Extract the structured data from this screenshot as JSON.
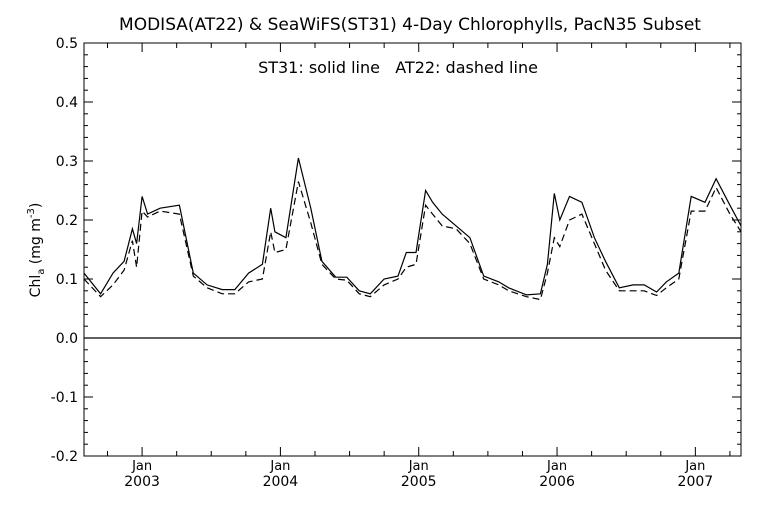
{
  "chart_data": {
    "type": "line",
    "title": "MODISA(AT22) & SeaWiFS(ST31) 4-Day Chlorophylls, PacN35 Subset",
    "annotation": "ST31: solid line   AT22: dashed line",
    "ylabel": "Chl",
    "ylabel_sub": "a",
    "ylabel_units_open": " (mg m",
    "ylabel_units_sup": "-3",
    "ylabel_units_close": ")",
    "ylim": [
      -0.2,
      0.5
    ],
    "xlim": [
      2002.58,
      2007.33
    ],
    "yticks": [
      -0.2,
      -0.1,
      0.0,
      0.1,
      0.2,
      0.3,
      0.4,
      0.5
    ],
    "ytick_labels": [
      "-0.2",
      "-0.1",
      "0.0",
      "0.1",
      "0.2",
      "0.3",
      "0.4",
      "0.5"
    ],
    "xticks": [
      {
        "x": 2003,
        "month": "Jan",
        "year": "2003"
      },
      {
        "x": 2004,
        "month": "Jan",
        "year": "2004"
      },
      {
        "x": 2005,
        "month": "Jan",
        "year": "2005"
      },
      {
        "x": 2006,
        "month": "Jan",
        "year": "2006"
      },
      {
        "x": 2007,
        "month": "Jan",
        "year": "2007"
      }
    ],
    "zero_line": 0.0,
    "series": [
      {
        "name": "ST31",
        "style": "solid",
        "x": [
          2002.58,
          2002.7,
          2002.79,
          2002.87,
          2002.93,
          2002.96,
          2003.0,
          2003.04,
          2003.13,
          2003.27,
          2003.37,
          2003.47,
          2003.58,
          2003.67,
          2003.77,
          2003.87,
          2003.93,
          2003.96,
          2004.04,
          2004.13,
          2004.22,
          2004.3,
          2004.4,
          2004.48,
          2004.57,
          2004.65,
          2004.75,
          2004.85,
          2004.91,
          2004.98,
          2005.05,
          2005.1,
          2005.17,
          2005.27,
          2005.37,
          2005.47,
          2005.58,
          2005.65,
          2005.78,
          2005.88,
          2005.93,
          2005.98,
          2006.02,
          2006.09,
          2006.18,
          2006.27,
          2006.35,
          2006.45,
          2006.55,
          2006.63,
          2006.72,
          2006.79,
          2006.88,
          2006.97,
          2007.07,
          2007.15,
          2007.25,
          2007.33
        ],
        "y": [
          0.11,
          0.075,
          0.11,
          0.13,
          0.185,
          0.16,
          0.24,
          0.21,
          0.22,
          0.225,
          0.11,
          0.09,
          0.082,
          0.082,
          0.11,
          0.125,
          0.22,
          0.18,
          0.17,
          0.305,
          0.22,
          0.13,
          0.103,
          0.103,
          0.08,
          0.075,
          0.1,
          0.105,
          0.145,
          0.145,
          0.25,
          0.23,
          0.21,
          0.19,
          0.17,
          0.105,
          0.095,
          0.085,
          0.073,
          0.075,
          0.125,
          0.245,
          0.2,
          0.24,
          0.23,
          0.17,
          0.13,
          0.085,
          0.09,
          0.09,
          0.078,
          0.095,
          0.11,
          0.24,
          0.23,
          0.27,
          0.225,
          0.19
        ]
      },
      {
        "name": "AT22",
        "style": "dashed",
        "x": [
          2002.58,
          2002.7,
          2002.79,
          2002.87,
          2002.93,
          2002.96,
          2003.0,
          2003.04,
          2003.13,
          2003.27,
          2003.37,
          2003.47,
          2003.58,
          2003.67,
          2003.77,
          2003.87,
          2003.93,
          2003.96,
          2004.04,
          2004.13,
          2004.22,
          2004.3,
          2004.4,
          2004.48,
          2004.57,
          2004.65,
          2004.75,
          2004.85,
          2004.91,
          2004.98,
          2005.05,
          2005.1,
          2005.17,
          2005.27,
          2005.37,
          2005.47,
          2005.58,
          2005.65,
          2005.78,
          2005.88,
          2005.93,
          2005.98,
          2006.02,
          2006.09,
          2006.18,
          2006.27,
          2006.35,
          2006.45,
          2006.55,
          2006.63,
          2006.72,
          2006.79,
          2006.88,
          2006.97,
          2007.07,
          2007.15,
          2007.25,
          2007.33
        ],
        "y": [
          0.1,
          0.07,
          0.09,
          0.115,
          0.165,
          0.12,
          0.215,
          0.205,
          0.215,
          0.21,
          0.105,
          0.085,
          0.075,
          0.075,
          0.095,
          0.1,
          0.18,
          0.145,
          0.15,
          0.265,
          0.195,
          0.125,
          0.1,
          0.098,
          0.075,
          0.07,
          0.09,
          0.1,
          0.12,
          0.125,
          0.225,
          0.21,
          0.19,
          0.185,
          0.16,
          0.1,
          0.09,
          0.08,
          0.07,
          0.065,
          0.11,
          0.17,
          0.155,
          0.2,
          0.21,
          0.16,
          0.115,
          0.08,
          0.08,
          0.08,
          0.072,
          0.085,
          0.1,
          0.215,
          0.215,
          0.255,
          0.21,
          0.18
        ]
      }
    ]
  }
}
